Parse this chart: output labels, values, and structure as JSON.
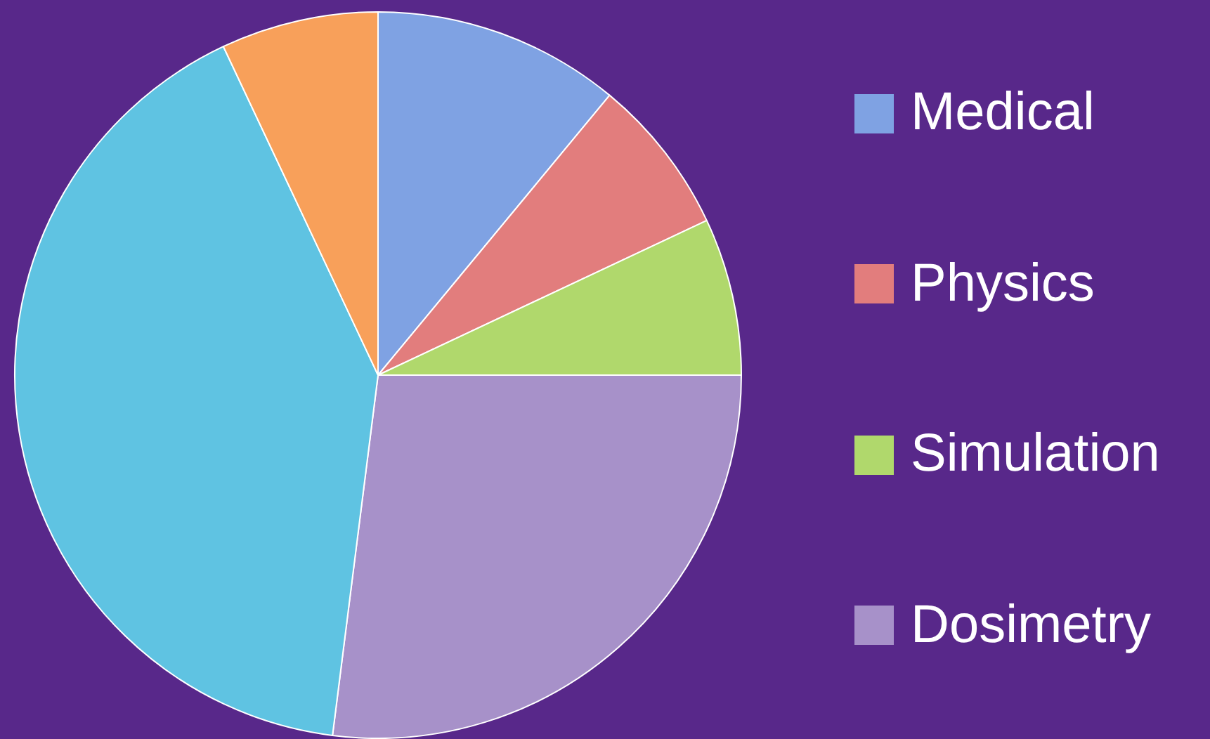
{
  "chart_data": {
    "type": "pie",
    "categories": [
      "Medical",
      "Physics",
      "Simulation",
      "Dosimetry",
      null,
      null
    ],
    "values": [
      11,
      7,
      7,
      27,
      41,
      7
    ],
    "colors": [
      "#7fa2e3",
      "#e27d7d",
      "#b0d86c",
      "#a791c9",
      "#5fc3e2",
      "#f8a05a"
    ],
    "legend": "right"
  }
}
